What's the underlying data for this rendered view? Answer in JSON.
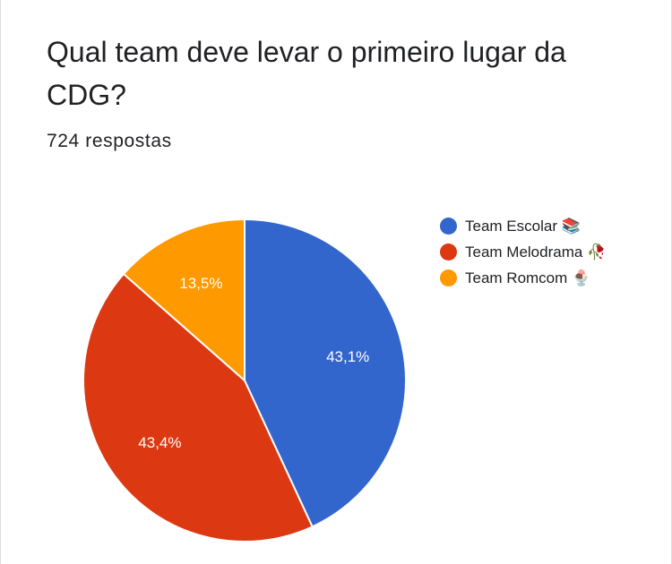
{
  "question": {
    "title": "Qual team deve levar o primeiro lugar da CDG?",
    "responses": "724 respostas"
  },
  "colors": {
    "escolar": "#3366cc",
    "melodrama": "#dc3912",
    "romcom": "#ff9900"
  },
  "chart_data": {
    "type": "pie",
    "start_angle_deg": 90,
    "direction": "clockwise",
    "slices": [
      {
        "label": "Team Escolar 📚",
        "value": 43.1,
        "display": "43,1%",
        "color": "#3366cc"
      },
      {
        "label": "Team Melodrama 🥀",
        "value": 43.4,
        "display": "43,4%",
        "color": "#dc3912"
      },
      {
        "label": "Team Romcom 🍨",
        "value": 13.5,
        "display": "13,5%",
        "color": "#ff9900"
      }
    ],
    "legend_position": "right"
  }
}
